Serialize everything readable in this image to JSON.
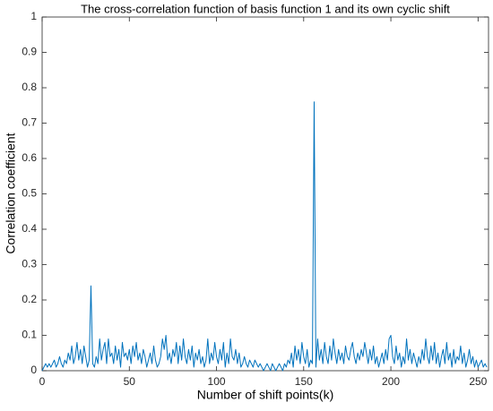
{
  "chart_data": {
    "type": "line",
    "title": "The cross-correlation function of basis function 1 and its own cyclic shift",
    "x_label": "Number of shift points(k)",
    "y_label": "Correlation coefficient",
    "x": [
      0,
      1,
      2,
      3,
      4,
      5,
      6,
      7,
      8,
      9,
      10,
      11,
      12,
      13,
      14,
      15,
      16,
      17,
      18,
      19,
      20,
      21,
      22,
      23,
      24,
      25,
      26,
      27,
      28,
      29,
      30,
      31,
      32,
      33,
      34,
      35,
      36,
      37,
      38,
      39,
      40,
      41,
      42,
      43,
      44,
      45,
      46,
      47,
      48,
      49,
      50,
      51,
      52,
      53,
      54,
      55,
      56,
      57,
      58,
      59,
      60,
      61,
      62,
      63,
      64,
      65,
      66,
      67,
      68,
      69,
      70,
      71,
      72,
      73,
      74,
      75,
      76,
      77,
      78,
      79,
      80,
      81,
      82,
      83,
      84,
      85,
      86,
      87,
      88,
      89,
      90,
      91,
      92,
      93,
      94,
      95,
      96,
      97,
      98,
      99,
      100,
      101,
      102,
      103,
      104,
      105,
      106,
      107,
      108,
      109,
      110,
      111,
      112,
      113,
      114,
      115,
      116,
      117,
      118,
      119,
      120,
      121,
      122,
      123,
      124,
      125,
      126,
      127,
      128,
      129,
      130,
      131,
      132,
      133,
      134,
      135,
      136,
      137,
      138,
      139,
      140,
      141,
      142,
      143,
      144,
      145,
      146,
      147,
      148,
      149,
      150,
      151,
      152,
      153,
      154,
      155,
      156,
      157,
      158,
      159,
      160,
      161,
      162,
      163,
      164,
      165,
      166,
      167,
      168,
      169,
      170,
      171,
      172,
      173,
      174,
      175,
      176,
      177,
      178,
      179,
      180,
      181,
      182,
      183,
      184,
      185,
      186,
      187,
      188,
      189,
      190,
      191,
      192,
      193,
      194,
      195,
      196,
      197,
      198,
      199,
      200,
      201,
      202,
      203,
      204,
      205,
      206,
      207,
      208,
      209,
      210,
      211,
      212,
      213,
      214,
      215,
      216,
      217,
      218,
      219,
      220,
      221,
      222,
      223,
      224,
      225,
      226,
      227,
      228,
      229,
      230,
      231,
      232,
      233,
      234,
      235,
      236,
      237,
      238,
      239,
      240,
      241,
      242,
      243,
      244,
      245,
      246,
      247,
      248,
      249,
      250,
      251,
      252,
      253,
      254,
      255
    ],
    "series": [
      {
        "color": "#0072bd",
        "values": [
          0,
          0.01,
          0.02,
          0.01,
          0.02,
          0.01,
          0.02,
          0.03,
          0.01,
          0.02,
          0.04,
          0.02,
          0.01,
          0.03,
          0.02,
          0.05,
          0.03,
          0.07,
          0.02,
          0.04,
          0.08,
          0.03,
          0.06,
          0.02,
          0.07,
          0.04,
          0.01,
          0.03,
          0.24,
          0.02,
          0.01,
          0.04,
          0.02,
          0.09,
          0.03,
          0.06,
          0.08,
          0.02,
          0.09,
          0.04,
          0.05,
          0.02,
          0.07,
          0.03,
          0.06,
          0.01,
          0.08,
          0.04,
          0.05,
          0.03,
          0.06,
          0.02,
          0.07,
          0.04,
          0.08,
          0.03,
          0.05,
          0.02,
          0.06,
          0.04,
          0.01,
          0.03,
          0.05,
          0.02,
          0.07,
          0.03,
          0.01,
          0.02,
          0.04,
          0.09,
          0.06,
          0.1,
          0.03,
          0.05,
          0.02,
          0.06,
          0.04,
          0.08,
          0.02,
          0.07,
          0.03,
          0.09,
          0.04,
          0.02,
          0.06,
          0.03,
          0.07,
          0.01,
          0.05,
          0.03,
          0.06,
          0.02,
          0.04,
          0.01,
          0.03,
          0.09,
          0.02,
          0.05,
          0.03,
          0.08,
          0.04,
          0.02,
          0.06,
          0.03,
          0.08,
          0.01,
          0.05,
          0.02,
          0.09,
          0.04,
          0.03,
          0.06,
          0.02,
          0.05,
          0.01,
          0.02,
          0.04,
          0.02,
          0.01,
          0.03,
          0.02,
          0.01,
          0.03,
          0.02,
          0.01,
          0.02,
          0.01,
          0,
          0.01,
          0.02,
          0.01,
          0,
          0.02,
          0.01,
          0,
          0.01,
          0.02,
          0.01,
          0,
          0.02,
          0.01,
          0.03,
          0.02,
          0.05,
          0.01,
          0.07,
          0.03,
          0.06,
          0.02,
          0.08,
          0.04,
          0.02,
          0.06,
          0.01,
          0.03,
          0.02,
          0.76,
          0.01,
          0.09,
          0.03,
          0.06,
          0.02,
          0.08,
          0.04,
          0.02,
          0.07,
          0.03,
          0.09,
          0.05,
          0.02,
          0.06,
          0.03,
          0.05,
          0.02,
          0.07,
          0.04,
          0.03,
          0.06,
          0.08,
          0.04,
          0.02,
          0.05,
          0.03,
          0.06,
          0.04,
          0.08,
          0.05,
          0.02,
          0.06,
          0.03,
          0.07,
          0.02,
          0.04,
          0.01,
          0.03,
          0.05,
          0.02,
          0.06,
          0.03,
          0.09,
          0.1,
          0.04,
          0.02,
          0.07,
          0.03,
          0.05,
          0.01,
          0.04,
          0.02,
          0.09,
          0.03,
          0.06,
          0.02,
          0.05,
          0.03,
          0.01,
          0.04,
          0.02,
          0.06,
          0.03,
          0.09,
          0.04,
          0.02,
          0.07,
          0.03,
          0.08,
          0.02,
          0.05,
          0.01,
          0.04,
          0.06,
          0.02,
          0.08,
          0.03,
          0.05,
          0.01,
          0.06,
          0.02,
          0.04,
          0.03,
          0.07,
          0.02,
          0.05,
          0.01,
          0.03,
          0.06,
          0.02,
          0.04,
          0.01,
          0.03,
          0.01,
          0.02,
          0.03,
          0.01,
          0.02,
          0.01
        ]
      }
    ],
    "xlim": [
      0,
      256
    ],
    "ylim": [
      0,
      1
    ],
    "xticks": [
      0,
      50,
      100,
      150,
      200,
      250
    ],
    "yticks": [
      0,
      0.1,
      0.2,
      0.3,
      0.4,
      0.5,
      0.6,
      0.7,
      0.8,
      0.9,
      1
    ]
  }
}
